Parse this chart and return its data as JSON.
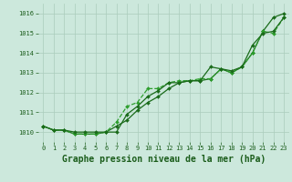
{
  "title": "Graphe pression niveau de la mer (hPa)",
  "x": [
    0,
    1,
    2,
    3,
    4,
    5,
    6,
    7,
    8,
    9,
    10,
    11,
    12,
    13,
    14,
    15,
    16,
    17,
    18,
    19,
    20,
    21,
    22,
    23
  ],
  "series": [
    [
      1010.3,
      1010.1,
      1010.1,
      1009.9,
      1009.9,
      1009.9,
      1010.0,
      1010.3,
      1010.6,
      1011.1,
      1011.5,
      1011.8,
      1012.2,
      1012.5,
      1012.6,
      1012.6,
      1012.7,
      1013.2,
      1013.0,
      1013.3,
      1014.0,
      1015.1,
      1015.8,
      1016.0
    ],
    [
      1010.3,
      1010.1,
      1010.1,
      1009.9,
      1009.9,
      1009.9,
      1010.0,
      1010.5,
      1011.3,
      1011.5,
      1012.2,
      1012.2,
      1012.5,
      1012.6,
      1012.6,
      1012.7,
      1012.7,
      1013.2,
      1013.0,
      1013.3,
      1014.0,
      1015.1,
      1015.0,
      1015.8
    ],
    [
      1010.3,
      1010.1,
      1010.1,
      1010.0,
      1010.0,
      1010.0,
      1010.0,
      1010.0,
      1010.9,
      1011.3,
      1011.8,
      1012.1,
      1012.5,
      1012.5,
      1012.6,
      1012.6,
      1013.3,
      1013.2,
      1013.1,
      1013.3,
      1014.4,
      1015.0,
      1015.1,
      1015.8
    ]
  ],
  "line_colors": [
    "#1a6b1a",
    "#2d9e2d",
    "#1a6b1a"
  ],
  "line_styles": [
    "-",
    "--",
    "-"
  ],
  "marker": "D",
  "marker_size": 2.0,
  "ylim": [
    1009.5,
    1016.5
  ],
  "yticks": [
    1010,
    1011,
    1012,
    1013,
    1014,
    1015,
    1016
  ],
  "xticks": [
    0,
    1,
    2,
    3,
    4,
    5,
    6,
    7,
    8,
    9,
    10,
    11,
    12,
    13,
    14,
    15,
    16,
    17,
    18,
    19,
    20,
    21,
    22,
    23
  ],
  "bg_color": "#cce8dc",
  "grid_color": "#aaccbb",
  "text_color": "#1a5c1a",
  "title_fontsize": 7,
  "tick_fontsize": 5,
  "linewidth": 0.9
}
